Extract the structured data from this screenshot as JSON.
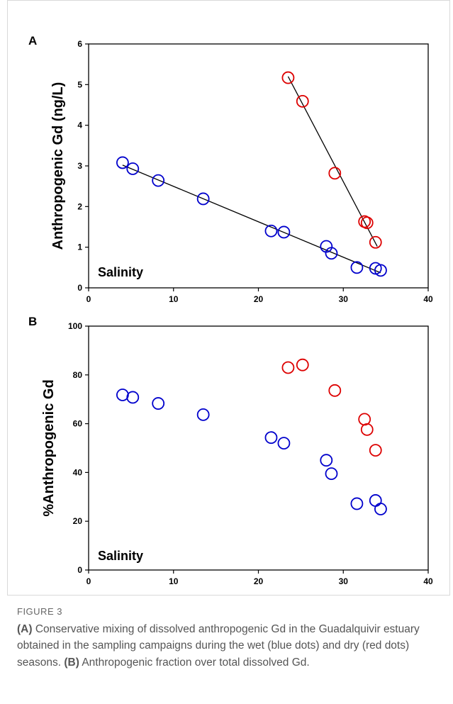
{
  "chart_data": [
    {
      "panel": "A",
      "type": "scatter",
      "ylabel": "Anthropogenic Gd (ng/L)",
      "inner_label": "Salinity",
      "xlim": [
        0,
        40
      ],
      "ylim": [
        0,
        6
      ],
      "xticks": [
        "0",
        "10",
        "20",
        "30",
        "40"
      ],
      "yticks": [
        "0",
        "1",
        "2",
        "3",
        "4",
        "5",
        "6"
      ],
      "series": [
        {
          "color": "#0000cc",
          "points": [
            [
              4.0,
              3.08
            ],
            [
              5.2,
              2.93
            ],
            [
              8.2,
              2.64
            ],
            [
              13.5,
              2.19
            ],
            [
              21.5,
              1.4
            ],
            [
              23.0,
              1.37
            ],
            [
              28.0,
              1.02
            ],
            [
              28.6,
              0.85
            ],
            [
              31.6,
              0.5
            ],
            [
              33.8,
              0.48
            ],
            [
              34.4,
              0.43
            ]
          ],
          "fit": [
            [
              4.0,
              3.02
            ],
            [
              34.4,
              0.37
            ]
          ]
        },
        {
          "color": "#dd0000",
          "points": [
            [
              23.5,
              5.17
            ],
            [
              25.2,
              4.59
            ],
            [
              29.0,
              2.82
            ],
            [
              32.5,
              1.63
            ],
            [
              32.8,
              1.6
            ],
            [
              33.8,
              1.12
            ]
          ],
          "fit": [
            [
              23.5,
              5.2
            ],
            [
              34.0,
              1.02
            ]
          ]
        }
      ]
    },
    {
      "panel": "B",
      "type": "scatter",
      "ylabel": "%Anthropogenic Gd",
      "inner_label": "Salinity",
      "xlim": [
        0,
        40
      ],
      "ylim": [
        0,
        100
      ],
      "xticks": [
        "0",
        "10",
        "20",
        "30",
        "40"
      ],
      "yticks": [
        "0",
        "20",
        "40",
        "60",
        "80",
        "100"
      ],
      "series": [
        {
          "color": "#0000cc",
          "points": [
            [
              4.0,
              71.8
            ],
            [
              5.2,
              70.8
            ],
            [
              8.2,
              68.3
            ],
            [
              13.5,
              63.7
            ],
            [
              21.5,
              54.3
            ],
            [
              23.0,
              52.0
            ],
            [
              28.0,
              45.0
            ],
            [
              28.6,
              39.5
            ],
            [
              31.6,
              27.2
            ],
            [
              33.8,
              28.5
            ],
            [
              34.4,
              25.0
            ]
          ]
        },
        {
          "color": "#dd0000",
          "points": [
            [
              23.5,
              83.0
            ],
            [
              25.2,
              84.1
            ],
            [
              29.0,
              73.6
            ],
            [
              32.5,
              61.8
            ],
            [
              32.8,
              57.6
            ],
            [
              33.8,
              49.1
            ]
          ]
        }
      ]
    }
  ],
  "caption": {
    "label": "FIGURE 3",
    "a_tag": "(A)",
    "a_text": " Conservative mixing of dissolved anthropogenic Gd in the Guadalquivir estuary obtained in the sampling campaigns during the wet (blue dots) and dry (red dots) seasons. ",
    "b_tag": "(B)",
    "b_text": " Anthropogenic fraction over total dissolved Gd."
  }
}
